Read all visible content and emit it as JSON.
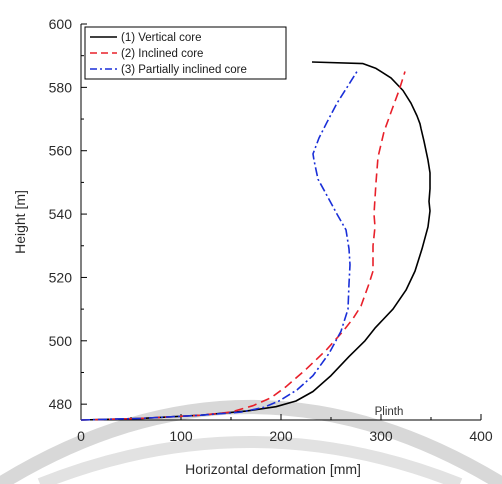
{
  "chart_data": {
    "type": "line",
    "title": "",
    "xlabel": "Horizontal deformation [mm]",
    "ylabel": "Height [m]",
    "xlim": [
      0,
      400
    ],
    "ylim": [
      475,
      600
    ],
    "x_ticks": [
      0,
      100,
      200,
      300,
      400
    ],
    "y_ticks": [
      480,
      500,
      520,
      540,
      560,
      580,
      600
    ],
    "grid": false,
    "legend_position": "top-left",
    "annotations": [
      {
        "text": "Plinth",
        "x": 308,
        "y": 476.5
      }
    ],
    "series": [
      {
        "name": "(1) Vertical core",
        "color": "#000000",
        "line_style": "solid",
        "points": [
          [
            0,
            475
          ],
          [
            60,
            475.5
          ],
          [
            120,
            476.5
          ],
          [
            165,
            477.8
          ],
          [
            195,
            479.2
          ],
          [
            215,
            481
          ],
          [
            232,
            484
          ],
          [
            250,
            489
          ],
          [
            268,
            495
          ],
          [
            284,
            500
          ],
          [
            294,
            504
          ],
          [
            312,
            510
          ],
          [
            325,
            516
          ],
          [
            334,
            522
          ],
          [
            341,
            529
          ],
          [
            347,
            536
          ],
          [
            349,
            541
          ],
          [
            348,
            544
          ],
          [
            349,
            548
          ],
          [
            349,
            553
          ],
          [
            347,
            557
          ],
          [
            343,
            563
          ],
          [
            340,
            567
          ],
          [
            339,
            568.5
          ],
          [
            336,
            571
          ],
          [
            330,
            575
          ],
          [
            322,
            579
          ],
          [
            310,
            583
          ],
          [
            295,
            586
          ],
          [
            282,
            587.5
          ],
          [
            231,
            588
          ]
        ]
      },
      {
        "name": "(2) Inclined core",
        "color": "#e8202a",
        "line_style": "dashed",
        "points": [
          [
            0,
            475
          ],
          [
            60,
            475.5
          ],
          [
            120,
            476.5
          ],
          [
            150,
            477.5
          ],
          [
            172,
            479.5
          ],
          [
            190,
            482
          ],
          [
            205,
            485.5
          ],
          [
            225,
            491
          ],
          [
            245,
            497
          ],
          [
            262,
            503
          ],
          [
            272,
            507
          ],
          [
            280,
            511
          ],
          [
            288,
            518
          ],
          [
            292,
            522
          ],
          [
            292,
            530
          ],
          [
            294,
            536
          ],
          [
            293,
            540
          ],
          [
            295,
            550
          ],
          [
            297,
            558
          ],
          [
            303,
            566
          ],
          [
            311,
            573
          ],
          [
            318,
            579
          ],
          [
            322,
            583
          ],
          [
            324,
            585
          ]
        ]
      },
      {
        "name": "(3) Partially inclined core",
        "color": "#1a2fd8",
        "line_style": "dashdot",
        "points": [
          [
            0,
            475
          ],
          [
            60,
            475.5
          ],
          [
            120,
            476.5
          ],
          [
            160,
            477.5
          ],
          [
            183,
            479
          ],
          [
            198,
            481
          ],
          [
            216,
            484.5
          ],
          [
            232,
            489
          ],
          [
            248,
            496
          ],
          [
            260,
            503
          ],
          [
            267,
            510
          ],
          [
            268,
            518
          ],
          [
            269,
            524
          ],
          [
            268,
            529
          ],
          [
            265,
            535
          ],
          [
            256,
            540
          ],
          [
            244,
            547
          ],
          [
            237,
            551
          ],
          [
            233,
            557
          ],
          [
            232,
            559
          ],
          [
            238,
            564
          ],
          [
            246,
            569
          ],
          [
            256,
            575
          ],
          [
            266,
            580
          ],
          [
            276,
            585
          ]
        ]
      }
    ]
  }
}
